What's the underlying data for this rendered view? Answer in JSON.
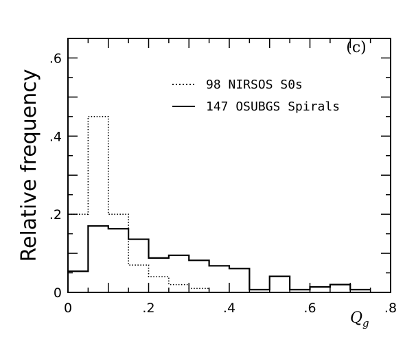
{
  "chart_data": {
    "type": "bar",
    "panel_label": "(c)",
    "ylabel": "Relative frequency",
    "xlabel": {
      "main": "Q",
      "subscript": "g"
    },
    "xlim": [
      0,
      0.8
    ],
    "ylim": [
      0,
      0.65
    ],
    "x_tick_values": [
      0,
      0.2,
      0.4,
      0.6,
      0.8
    ],
    "x_tick_labels": [
      "0",
      ".2",
      ".4",
      ".6",
      ".8"
    ],
    "y_tick_values": [
      0,
      0.2,
      0.4,
      0.6
    ],
    "y_tick_labels": [
      "0",
      ".2",
      ".4",
      ".6"
    ],
    "legend_position": "upper-right",
    "bin_edges": [
      0,
      0.05,
      0.1,
      0.15,
      0.2,
      0.25,
      0.3,
      0.35,
      0.4,
      0.45,
      0.5,
      0.55,
      0.6,
      0.65,
      0.7,
      0.75
    ],
    "series": [
      {
        "name": "98 NIRSOS S0s",
        "line_style": "dotted",
        "values": [
          0.2,
          0.45,
          0.2,
          0.07,
          0.04,
          0.02,
          0.01,
          0,
          0,
          0,
          0,
          0,
          0,
          0,
          0
        ]
      },
      {
        "name": "147 OSUBGS Spirals",
        "line_style": "solid",
        "values": [
          0.054,
          0.17,
          0.163,
          0.136,
          0.088,
          0.095,
          0.082,
          0.068,
          0.061,
          0.007,
          0.041,
          0.007,
          0.014,
          0.02,
          0.007
        ]
      }
    ]
  }
}
